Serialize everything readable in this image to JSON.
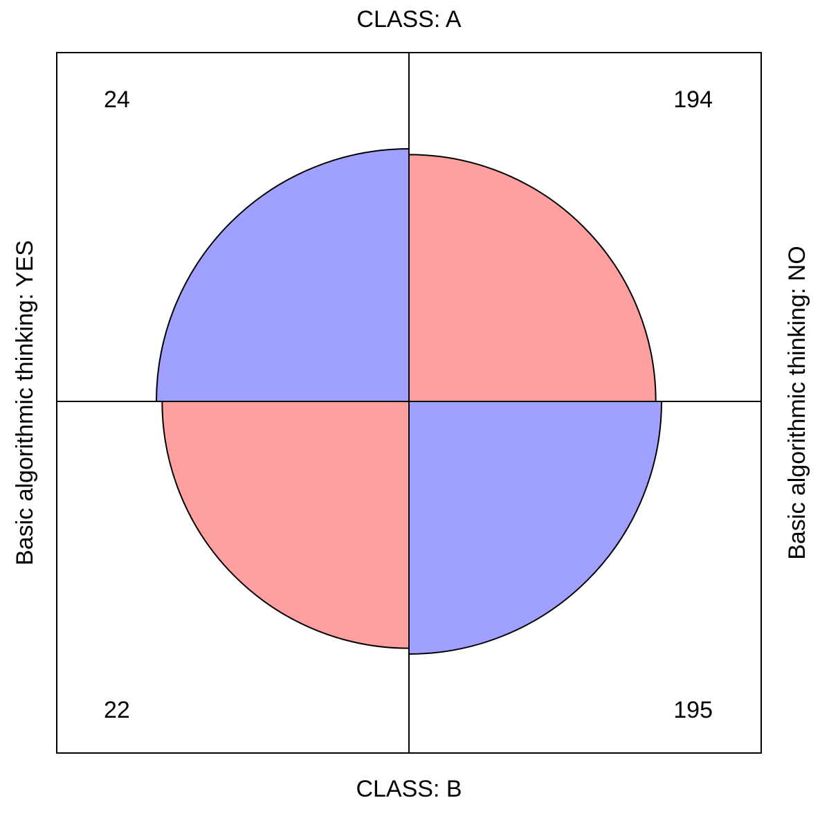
{
  "chart_data": {
    "type": "fourfold",
    "row_labels": [
      "CLASS: A",
      "CLASS: B"
    ],
    "col_labels": [
      "Basic algorithmic thinking: YES",
      "Basic algorithmic thinking: NO"
    ],
    "values": [
      [
        24,
        194
      ],
      [
        22,
        195
      ]
    ],
    "colors": [
      "#a0a0ff",
      "#ffa0a0"
    ]
  }
}
